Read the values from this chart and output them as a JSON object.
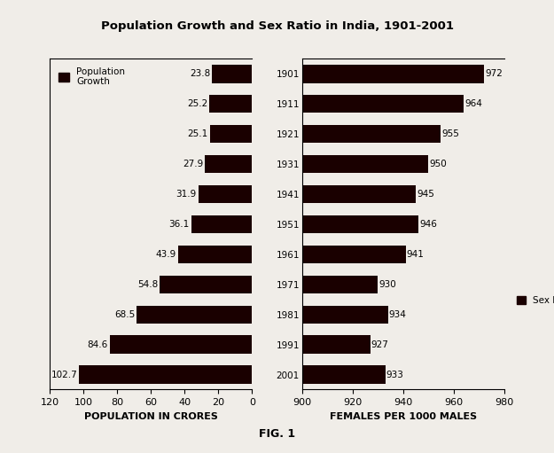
{
  "title": "Population Growth and Sex Ratio in India, 1901-2001",
  "years": [
    "1901",
    "1911",
    "1921",
    "1931",
    "1941",
    "1951",
    "1961",
    "1971",
    "1981",
    "1991",
    "2001"
  ],
  "population": [
    23.8,
    25.2,
    25.1,
    27.9,
    31.9,
    36.1,
    43.9,
    54.8,
    68.5,
    84.6,
    102.7
  ],
  "sex_ratio": [
    972,
    964,
    955,
    950,
    945,
    946,
    941,
    930,
    934,
    927,
    933
  ],
  "bar_color": "#1a0000",
  "left_xticks": [
    0,
    20,
    40,
    60,
    80,
    100,
    120
  ],
  "right_xticks": [
    900,
    920,
    940,
    960,
    980
  ],
  "left_xlabel": "POPULATION IN CRORES",
  "right_xlabel": "FEMALES PER 1000 MALES",
  "fig_label": "FIG. 1",
  "legend_pop": "Population\nGrowth",
  "legend_sex": "Sex Ratio",
  "background": "#f0ede8"
}
